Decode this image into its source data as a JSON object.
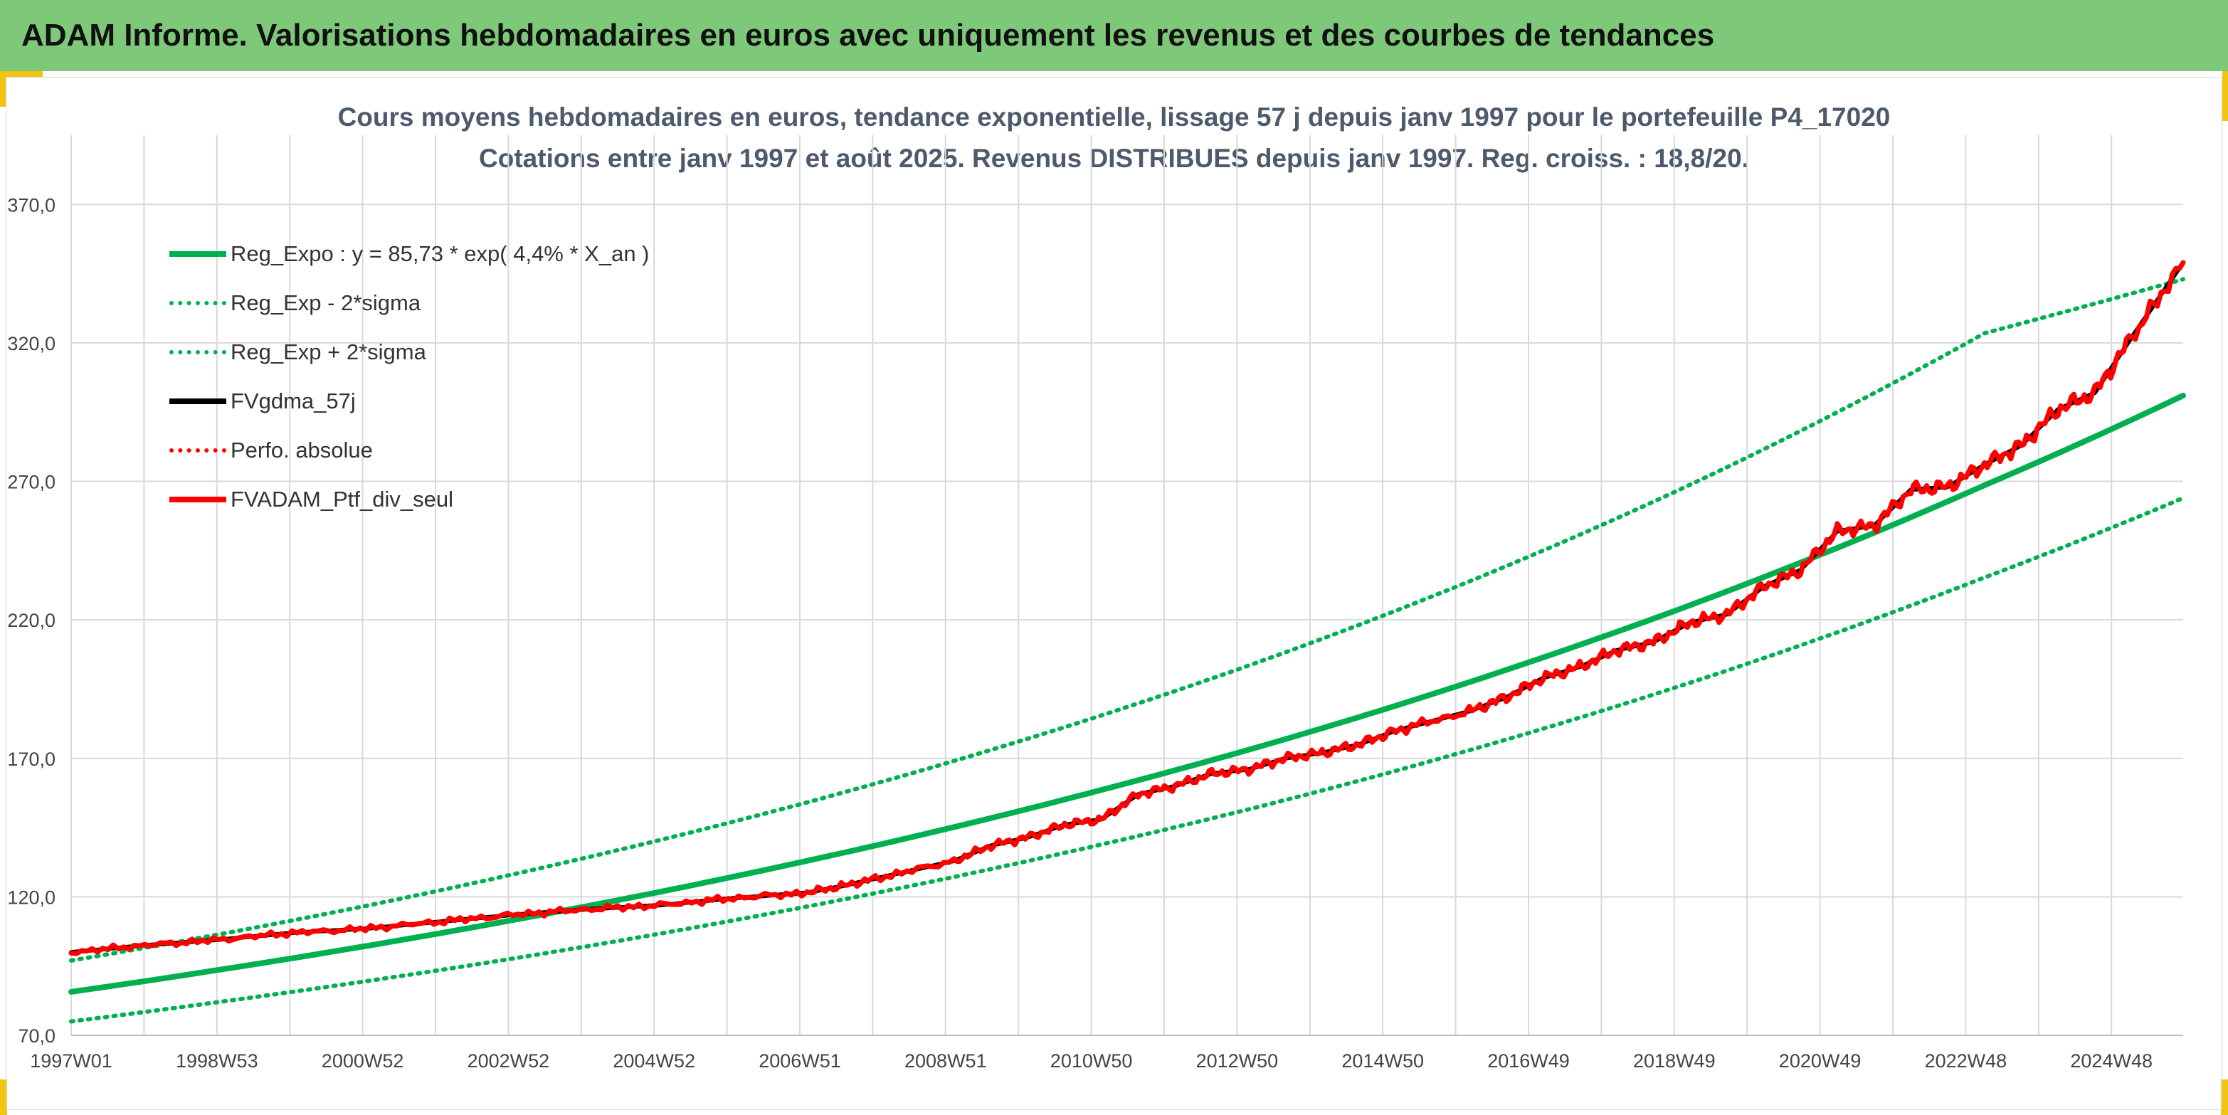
{
  "banner": {
    "title": "ADAM Informe. Valorisations hebdomadaires en euros avec uniquement les revenus et des courbes de tendances"
  },
  "colors": {
    "banner_bg": "#7ec87a",
    "accent": "#f1c40f",
    "reg_expo": "#00b050",
    "actual": "#ff0000",
    "gdma": "#000000",
    "grid": "#d9d9d9"
  },
  "chart_data": {
    "type": "line",
    "title": "Cours moyens hebdomadaires en euros, tendance exponentielle, lissage 57 j depuis janv 1997 pour le portefeuille P4_17020",
    "subtitle": "Cotations entre janv 1997 et août 2025. Revenus DISTRIBUES depuis janv 1997. Reg. croiss. : 18,8/20.",
    "xlabel": "",
    "ylabel": "",
    "x_ticks": [
      "1997W01",
      "1998W53",
      "2000W52",
      "2002W52",
      "2004W52",
      "2006W51",
      "2008W51",
      "2010W50",
      "2012W50",
      "2014W50",
      "2016W49",
      "2018W49",
      "2020W49",
      "2022W48",
      "2024W48"
    ],
    "y_ticks": [
      "70,0",
      "120,0",
      "170,0",
      "220,0",
      "270,0",
      "320,0",
      "370,0"
    ],
    "ylim": [
      70,
      395
    ],
    "xlim": [
      1997.0,
      2025.7
    ],
    "grid": true,
    "legend_position": "top-left",
    "legend": [
      {
        "label": "Reg_Expo : y = 85,73 * exp( 4,4% *  X_an )",
        "style": "solid",
        "color": "#00b050"
      },
      {
        "label": "Reg_Exp - 2*sigma",
        "style": "dotted",
        "color": "#00b050"
      },
      {
        "label": "Reg_Exp + 2*sigma",
        "style": "dotted",
        "color": "#00b050"
      },
      {
        "label": "FVgdma_57j",
        "style": "solid",
        "color": "#000000"
      },
      {
        "label": "Perfo. absolue",
        "style": "dotted",
        "color": "#ff0000"
      },
      {
        "label": "FVADAM_Ptf_div_seul",
        "style": "solid",
        "color": "#ff0000"
      }
    ],
    "series": [
      {
        "name": "Reg_Expo : y = 85,73 * exp( 4,4% *  X_an )",
        "x": [
          1997.0,
          1999.0,
          2001.0,
          2003.0,
          2005.0,
          2007.0,
          2009.0,
          2011.0,
          2013.0,
          2015.0,
          2017.0,
          2019.0,
          2021.0,
          2023.0,
          2025.7
        ],
        "values": [
          85.7,
          93.6,
          102.2,
          111.6,
          121.8,
          133.0,
          145.2,
          158.6,
          173.1,
          189.0,
          206.4,
          225.3,
          246.0,
          268.6,
          301.0
        ]
      },
      {
        "name": "Reg_Exp - 2*sigma",
        "x": [
          1997.0,
          1999.0,
          2001.0,
          2003.0,
          2005.0,
          2007.0,
          2009.0,
          2011.0,
          2013.0,
          2015.0,
          2017.0,
          2019.0,
          2021.0,
          2023.0,
          2025.7
        ],
        "values": [
          75.0,
          82.0,
          89.5,
          97.7,
          106.7,
          116.5,
          127.2,
          138.9,
          151.6,
          165.5,
          180.7,
          197.3,
          215.5,
          235.3,
          264.0
        ]
      },
      {
        "name": "Reg_Exp + 2*sigma",
        "x": [
          1997.0,
          1999.0,
          2001.0,
          2003.0,
          2005.0,
          2007.0,
          2009.0,
          2011.0,
          2013.0,
          2015.0,
          2017.0,
          2019.0,
          2021.0,
          2023.0,
          2025.7
        ],
        "values": [
          97.0,
          106.4,
          116.7,
          128.1,
          140.5,
          154.1,
          169.1,
          185.5,
          203.5,
          223.3,
          245.0,
          268.8,
          295.0,
          323.5,
          343.0
        ]
      },
      {
        "name": "FVgdma_57j",
        "x": [
          1997.0,
          1998.0,
          1999.0,
          2000.0,
          2001.0,
          2002.0,
          2003.0,
          2004.0,
          2005.0,
          2006.0,
          2007.0,
          2007.5,
          2008.0,
          2009.0,
          2009.5,
          2010.0,
          2010.5,
          2011.0,
          2011.5,
          2012.0,
          2012.5,
          2013.0,
          2013.5,
          2014.0,
          2014.5,
          2015.0,
          2016.0,
          2016.5,
          2017.0,
          2017.5,
          2018.0,
          2018.5,
          2019.0,
          2019.5,
          2020.0,
          2020.5,
          2021.0,
          2021.5,
          2022.0,
          2022.5,
          2023.0,
          2023.5,
          2024.0,
          2024.5,
          2025.0,
          2025.7
        ],
        "values": [
          100.0,
          102.5,
          104.5,
          107.0,
          108.5,
          111.0,
          113.5,
          115.5,
          117.0,
          119.5,
          121.5,
          124.0,
          127.0,
          133.0,
          138.5,
          141.5,
          146.0,
          148.0,
          157.0,
          160.0,
          164.5,
          166.0,
          170.0,
          172.0,
          175.0,
          180.0,
          187.0,
          192.0,
          199.0,
          203.0,
          209.0,
          212.0,
          219.0,
          222.0,
          232.0,
          238.0,
          252.0,
          254.0,
          267.0,
          268.0,
          276.0,
          283.0,
          296.0,
          302.0,
          322.0,
          349.0
        ]
      },
      {
        "name": "Perfo. absolue",
        "x": [
          1997.0,
          1998.0,
          1999.0,
          2000.0,
          2001.0,
          2002.0,
          2003.0,
          2004.0,
          2005.0,
          2006.0,
          2007.0,
          2007.5,
          2008.0,
          2009.0,
          2009.5,
          2010.0,
          2010.5,
          2011.0,
          2011.5,
          2012.0,
          2012.5,
          2013.0,
          2013.5,
          2014.0,
          2014.5,
          2015.0,
          2016.0,
          2016.5,
          2017.0,
          2017.5,
          2018.0,
          2018.5,
          2019.0,
          2019.5,
          2020.0,
          2020.5,
          2021.0,
          2021.5,
          2022.0,
          2022.5,
          2023.0,
          2023.5,
          2024.0,
          2024.5,
          2025.0,
          2025.7
        ],
        "values": [
          100.0,
          102.5,
          104.5,
          107.0,
          108.5,
          111.0,
          113.5,
          115.5,
          117.0,
          119.5,
          121.5,
          124.0,
          127.0,
          133.0,
          138.5,
          141.5,
          146.0,
          148.0,
          157.0,
          160.0,
          164.5,
          166.0,
          170.0,
          172.0,
          175.0,
          180.0,
          187.0,
          192.0,
          199.0,
          203.0,
          209.0,
          212.0,
          219.0,
          222.0,
          232.0,
          238.0,
          252.0,
          254.0,
          267.0,
          268.0,
          276.0,
          283.0,
          296.0,
          302.0,
          322.0,
          349.0
        ]
      },
      {
        "name": "FVADAM_Ptf_div_seul",
        "x": [
          1997.0,
          1998.0,
          1999.0,
          2000.0,
          2001.0,
          2002.0,
          2003.0,
          2004.0,
          2005.0,
          2006.0,
          2007.0,
          2007.5,
          2008.0,
          2009.0,
          2009.5,
          2010.0,
          2010.5,
          2011.0,
          2011.5,
          2012.0,
          2012.5,
          2013.0,
          2013.5,
          2014.0,
          2014.5,
          2015.0,
          2016.0,
          2016.5,
          2017.0,
          2017.5,
          2018.0,
          2018.5,
          2019.0,
          2019.5,
          2020.0,
          2020.5,
          2021.0,
          2021.5,
          2022.0,
          2022.5,
          2023.0,
          2023.5,
          2024.0,
          2024.5,
          2025.0,
          2025.7
        ],
        "values": [
          100.0,
          102.5,
          104.5,
          107.0,
          108.5,
          111.0,
          113.5,
          115.5,
          117.0,
          119.5,
          121.5,
          124.0,
          127.0,
          133.0,
          138.5,
          141.5,
          146.0,
          148.0,
          157.0,
          160.0,
          164.5,
          166.0,
          170.0,
          172.0,
          175.0,
          180.0,
          187.0,
          192.0,
          199.0,
          203.0,
          209.0,
          212.0,
          219.0,
          222.0,
          232.0,
          238.0,
          252.0,
          254.0,
          267.0,
          268.0,
          276.0,
          283.0,
          296.0,
          302.0,
          322.0,
          349.0
        ]
      }
    ]
  }
}
